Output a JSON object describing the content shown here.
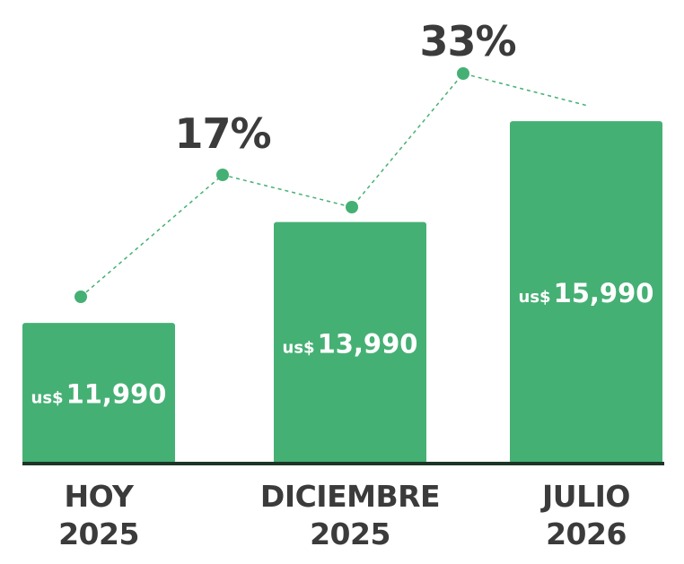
{
  "chart_data": {
    "type": "bar",
    "categories": [
      "HOY\n2025",
      "DICIEMBRE\n2025",
      "JULIO\n2026"
    ],
    "values": [
      11990,
      13990,
      15990
    ],
    "value_labels": [
      "11,990",
      "13,990",
      "15,990"
    ],
    "value_prefix": "us$",
    "color": "#45b074",
    "ylim": [
      9200,
      18000
    ],
    "annotations": [
      "17%",
      "33%"
    ]
  }
}
